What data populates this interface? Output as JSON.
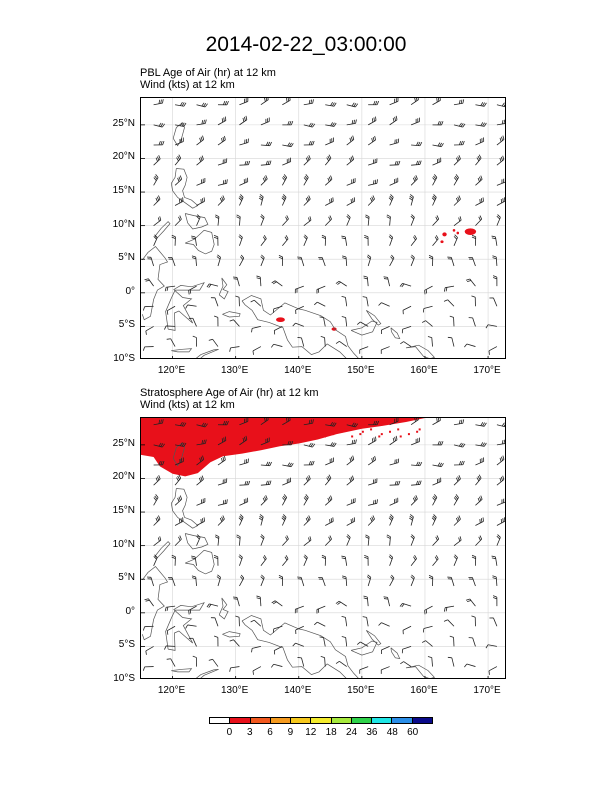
{
  "title": "2014-02-22_03:00:00",
  "panels": [
    {
      "id": "pbl",
      "title_line1": "PBL Age of Air   (hr)     at   12 km",
      "title_line2": "Wind   (kts)     at   12 km",
      "lat_labels": [
        "25°N",
        "20°N",
        "15°N",
        "10°N",
        "5°N",
        "0°",
        "5°S",
        "10°S"
      ],
      "lon_labels": [
        "120°E",
        "130°E",
        "140°E",
        "150°E",
        "160°E",
        "170°E"
      ]
    },
    {
      "id": "strat",
      "title_line1": "Stratosphere Age of Air   (hr)     at   12 km",
      "title_line2": "Wind   (kts)     at   12 km",
      "lat_labels": [
        "25°N",
        "20°N",
        "15°N",
        "10°N",
        "5°N",
        "0°",
        "5°S",
        "10°S"
      ],
      "lon_labels": [
        "120°E",
        "130°E",
        "140°E",
        "150°E",
        "160°E",
        "170°E"
      ]
    }
  ],
  "colorbar": {
    "labels": [
      "0",
      "3",
      "6",
      "9",
      "12",
      "18",
      "24",
      "36",
      "48",
      "60"
    ],
    "colors": [
      "#ffffff",
      "#e8101a",
      "#f2581e",
      "#f59a1e",
      "#f6c81c",
      "#f4ec2c",
      "#a6ea3c",
      "#2ed24a",
      "#1ee6e6",
      "#2a8ee8",
      "#0a0a8a"
    ]
  },
  "chart_data": {
    "type": "map",
    "domain": {
      "lon_range": [
        115,
        173
      ],
      "lat_range": [
        -10,
        29
      ]
    },
    "variables": [
      {
        "panel": "pbl",
        "field": "PBL Age of Air",
        "units": "hr",
        "level": "12 km"
      },
      {
        "panel": "strat",
        "field": "Stratosphere Age of Air",
        "units": "hr",
        "level": "12 km"
      }
    ],
    "overlay": {
      "field": "Wind",
      "units": "kts",
      "level": "12 km",
      "style": "barbs"
    }
  }
}
